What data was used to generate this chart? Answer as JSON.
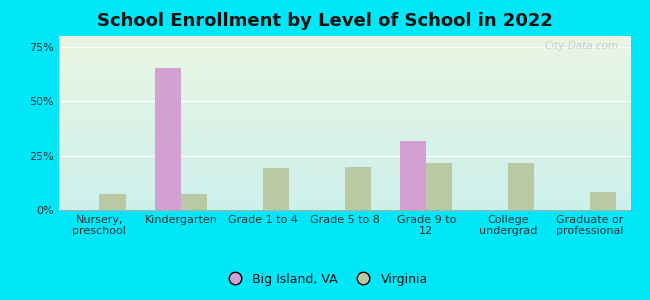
{
  "title": "School Enrollment by Level of School in 2022",
  "categories": [
    "Nursery,\npreschool",
    "Kindergarten",
    "Grade 1 to 4",
    "Grade 5 to 8",
    "Grade 9 to\n12",
    "College\nundergrad",
    "Graduate or\nprofessional"
  ],
  "big_island_values": [
    0.0,
    0.655,
    0.0,
    0.0,
    0.315,
    0.0,
    0.0
  ],
  "virginia_values": [
    0.075,
    0.075,
    0.195,
    0.2,
    0.215,
    0.215,
    0.085
  ],
  "big_island_color": "#d4a0d4",
  "virginia_color": "#b8c9a3",
  "background_outer": "#00e8f8",
  "background_inner_top": "#eaf6e2",
  "background_inner_bottom": "#cdf0ec",
  "ylim": [
    0,
    0.8
  ],
  "yticks": [
    0.0,
    0.25,
    0.5,
    0.75
  ],
  "ytick_labels": [
    "0%",
    "25%",
    "50%",
    "75%"
  ],
  "legend_labels": [
    "Big Island, VA",
    "Virginia"
  ],
  "watermark": "City-Data.com",
  "bar_width": 0.32,
  "title_fontsize": 13,
  "tick_fontsize": 8,
  "legend_fontsize": 9
}
